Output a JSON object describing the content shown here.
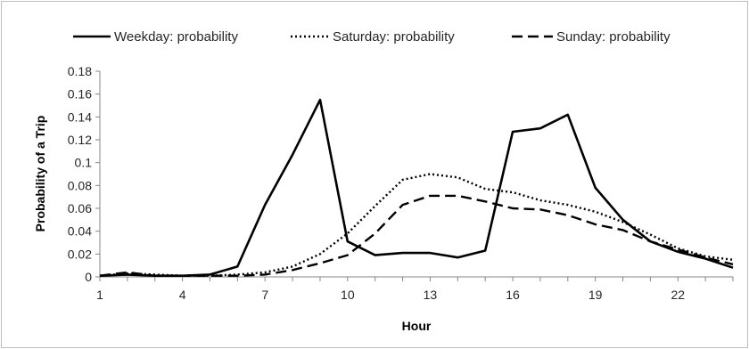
{
  "chart_data": {
    "type": "line",
    "title": "",
    "xlabel": "Hour",
    "ylabel": "Probability of a Trip",
    "x": [
      1,
      2,
      3,
      4,
      5,
      6,
      7,
      8,
      9,
      10,
      11,
      12,
      13,
      14,
      15,
      16,
      17,
      18,
      19,
      20,
      21,
      22,
      23,
      24
    ],
    "x_ticks": [
      1,
      4,
      7,
      10,
      13,
      16,
      19,
      22
    ],
    "x_range": [
      1,
      24
    ],
    "y_ticks": [
      "0",
      "0.02",
      "0.04",
      "0.06",
      "0.08",
      "0.1",
      "0.12",
      "0.14",
      "0.16",
      "0.18"
    ],
    "ylim": [
      0,
      0.18
    ],
    "grid": false,
    "legend_position": "top",
    "series": [
      {
        "name": "Weekday: probability",
        "style": "solid",
        "values": [
          0.001,
          0.002,
          0.001,
          0.001,
          0.002,
          0.009,
          0.063,
          0.107,
          0.155,
          0.031,
          0.019,
          0.021,
          0.021,
          0.017,
          0.023,
          0.127,
          0.13,
          0.142,
          0.078,
          0.05,
          0.031,
          0.022,
          0.016,
          0.008
        ]
      },
      {
        "name": "Saturday: probability",
        "style": "dotted",
        "values": [
          0.001,
          0.003,
          0.002,
          0.001,
          0.001,
          0.002,
          0.004,
          0.009,
          0.02,
          0.038,
          0.062,
          0.085,
          0.09,
          0.087,
          0.077,
          0.074,
          0.067,
          0.063,
          0.057,
          0.048,
          0.037,
          0.025,
          0.018,
          0.015
        ]
      },
      {
        "name": "Sunday: probability",
        "style": "dashed",
        "values": [
          0.001,
          0.004,
          0.001,
          0.001,
          0.001,
          0.001,
          0.002,
          0.006,
          0.012,
          0.019,
          0.038,
          0.063,
          0.071,
          0.071,
          0.066,
          0.06,
          0.059,
          0.054,
          0.046,
          0.041,
          0.031,
          0.024,
          0.017,
          0.011
        ]
      }
    ],
    "colors": {
      "series": "#000000",
      "axis": "#868686",
      "text": "#262626"
    }
  }
}
